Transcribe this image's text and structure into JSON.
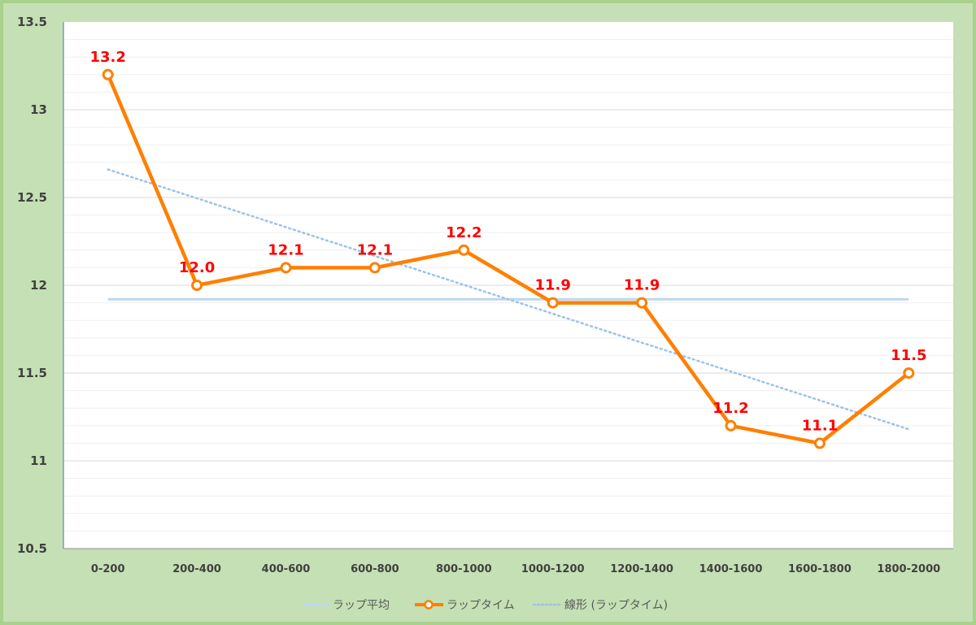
{
  "chart_data": {
    "type": "line",
    "categories": [
      "0-200",
      "200-400",
      "400-600",
      "600-800",
      "800-1000",
      "1000-1200",
      "1200-1400",
      "1400-1600",
      "1600-1800",
      "1800-2000"
    ],
    "series": [
      {
        "name": "ラップタイム",
        "values": [
          13.2,
          12.0,
          12.1,
          12.1,
          12.2,
          11.9,
          11.9,
          11.2,
          11.1,
          11.5
        ],
        "data_labels": [
          "13.2",
          "12.0",
          "12.1",
          "12.1",
          "12.2",
          "11.9",
          "11.9",
          "11.2",
          "11.1",
          "11.5"
        ],
        "color": "#ff7f00",
        "marker": "hollow-circle"
      },
      {
        "name": "ラップ平均",
        "values": [
          11.92,
          11.92,
          11.92,
          11.92,
          11.92,
          11.92,
          11.92,
          11.92,
          11.92,
          11.92
        ],
        "color": "#bdd7ee"
      },
      {
        "name": "線形 (ラップタイム)",
        "trendline": true,
        "start": 12.66,
        "end": 11.18,
        "color": "#9dc3e6"
      }
    ],
    "y_ticks": [
      "10.5",
      "11",
      "11.5",
      "12",
      "12.5",
      "13",
      "13.5"
    ],
    "ylim": [
      10.5,
      13.5
    ],
    "y_minor_step": 0.1,
    "grid": true,
    "legend_position": "bottom",
    "legend": [
      "ラップ平均",
      "ラップタイム",
      "線形 (ラップタイム)"
    ],
    "label_color": "#ff0000",
    "background_color": "#c5e0b4",
    "plot_background": "#ffffff"
  }
}
